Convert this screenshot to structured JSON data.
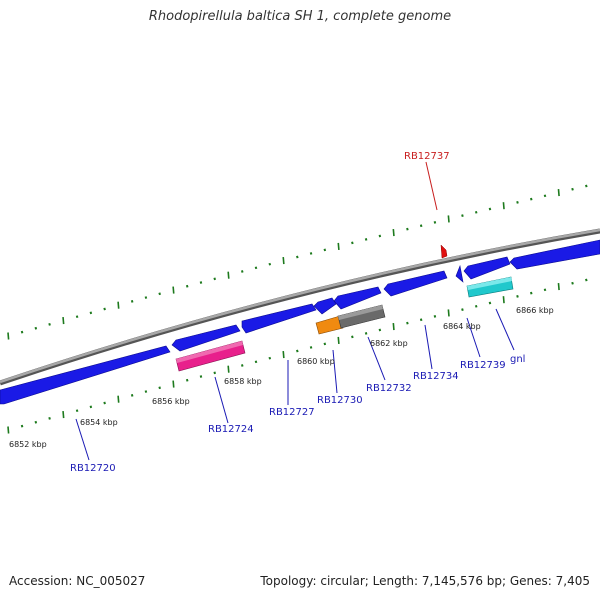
{
  "title": "Rhodopirellula baltica SH 1, complete genome",
  "footer": {
    "accession": "Accession: NC_005027",
    "summary": "Topology: circular; Length: 7,145,576 bp; Genes: 7,405"
  },
  "colors": {
    "forward_gene": "#1a1ae6",
    "backbone": "#888888",
    "ticks": "#1d7a1d",
    "label_blue": "#1a1ab4",
    "label_red": "#c81e1e",
    "highlight_red": "#e01010",
    "magenta": "#e8208c",
    "orange": "#f08a10",
    "gray_feature": "#6a6a6a",
    "cyan": "#20c8cc"
  },
  "scale_labels": [
    {
      "text": "6852 kbp",
      "kbp": 6852
    },
    {
      "text": "6854 kbp",
      "kbp": 6854
    },
    {
      "text": "6856 kbp",
      "kbp": 6856
    },
    {
      "text": "6858 kbp",
      "kbp": 6858
    },
    {
      "text": "6860 kbp",
      "kbp": 6860
    },
    {
      "text": "6862 kbp",
      "kbp": 6862
    },
    {
      "text": "6864 kbp",
      "kbp": 6864
    },
    {
      "text": "6866 kbp",
      "kbp": 6866
    }
  ],
  "gene_labels": [
    {
      "text": "RB12720",
      "color": "label_blue"
    },
    {
      "text": "RB12724",
      "color": "label_blue"
    },
    {
      "text": "RB12727",
      "color": "label_blue"
    },
    {
      "text": "RB12730",
      "color": "label_blue"
    },
    {
      "text": "RB12732",
      "color": "label_blue"
    },
    {
      "text": "RB12734",
      "color": "label_blue"
    },
    {
      "text": "RB12739",
      "color": "label_blue"
    },
    {
      "text": "gnl",
      "color": "label_blue"
    },
    {
      "text": "RB12737",
      "color": "label_red"
    }
  ]
}
